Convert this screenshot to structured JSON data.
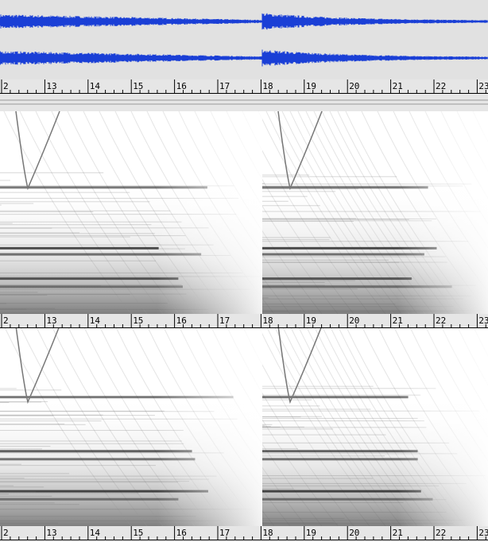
{
  "rulers": [
    {
      "labels": [
        "2",
        "13",
        "14",
        "15",
        "16",
        "17",
        "18",
        "19",
        "20",
        "21",
        "22",
        "23"
      ]
    },
    {
      "labels": [
        "2",
        "13",
        "14",
        "15",
        "16",
        "17",
        "18",
        "19",
        "20",
        "21",
        "22",
        "23"
      ]
    },
    {
      "labels": [
        "2",
        "13",
        "14",
        "15",
        "16",
        "17",
        "18",
        "19",
        "20",
        "21",
        "22",
        "23"
      ]
    }
  ]
}
